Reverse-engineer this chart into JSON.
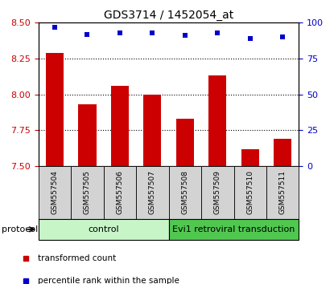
{
  "title": "GDS3714 / 1452054_at",
  "samples": [
    "GSM557504",
    "GSM557505",
    "GSM557506",
    "GSM557507",
    "GSM557508",
    "GSM557509",
    "GSM557510",
    "GSM557511"
  ],
  "bar_values": [
    8.29,
    7.93,
    8.06,
    8.0,
    7.83,
    8.13,
    7.62,
    7.69
  ],
  "percentile_values": [
    97,
    92,
    93,
    93,
    91,
    93,
    89,
    90
  ],
  "ylim_left": [
    7.5,
    8.5
  ],
  "ylim_right": [
    0,
    100
  ],
  "yticks_left": [
    7.5,
    7.75,
    8.0,
    8.25,
    8.5
  ],
  "yticks_right": [
    0,
    25,
    50,
    75,
    100
  ],
  "bar_color": "#CC0000",
  "dot_color": "#0000CC",
  "control_bg": "#C8F5C8",
  "evi1_bg": "#50C850",
  "protocol_label": "protocol",
  "group_labels": [
    "control",
    "Evi1 retroviral transduction"
  ],
  "legend_bar_label": "transformed count",
  "legend_dot_label": "percentile rank within the sample",
  "tick_label_color_left": "#CC0000",
  "tick_label_color_right": "#0000CC",
  "sample_bg_color": "#D3D3D3",
  "grid_yticks": [
    7.75,
    8.0,
    8.25
  ]
}
